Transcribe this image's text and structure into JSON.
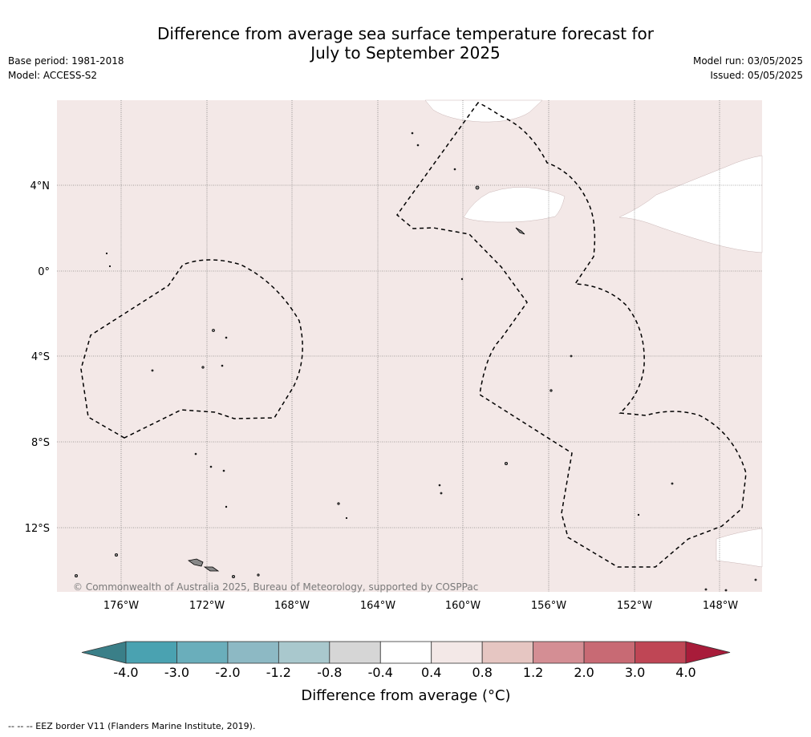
{
  "header": {
    "title_line1": "Difference from average sea surface temperature forecast for",
    "title_line2": "July to September 2025",
    "base_period": "Base period: 1981-2018",
    "model": "Model: ACCESS-S2",
    "model_run": "Model run: 03/05/2025",
    "issued": "Issued: 05/05/2025"
  },
  "map": {
    "copyright": "© Commonwealth of Australia 2025, Bureau of Meteorology, supported by COSPPac",
    "lon_labels": [
      "176°W",
      "172°W",
      "168°W",
      "164°W",
      "160°W",
      "156°W",
      "152°W",
      "148°W"
    ],
    "lat_labels": [
      "4°N",
      "0°",
      "4°S",
      "8°S",
      "12°S"
    ],
    "colors": {
      "ocean_0.4_0.8": "#f3e8e7",
      "ocean_neutral": "#ffffff",
      "land": "#888888",
      "eez_line": "#000000"
    },
    "layers": {
      "eez_border": "dashed black line",
      "land": "grey islands"
    }
  },
  "colorbar": {
    "label": "Difference from average (°C)",
    "ticks": [
      "-4.0",
      "-3.0",
      "-2.0",
      "-1.2",
      "-0.8",
      "-0.4",
      "0.4",
      "0.8",
      "1.2",
      "2.0",
      "3.0",
      "4.0"
    ],
    "colors": [
      "#3a7f88",
      "#4aa2b1",
      "#6aaebb",
      "#8db9c4",
      "#a9c8cd",
      "#d6d6d6",
      "#ffffff",
      "#f3e8e7",
      "#e6c6c2",
      "#d48e94",
      "#c86a74",
      "#bf4655",
      "#a81c3a"
    ]
  },
  "footer": {
    "legend_line": "--  --  -- EEZ border V11 (Flanders Marine Institute, 2019)."
  }
}
